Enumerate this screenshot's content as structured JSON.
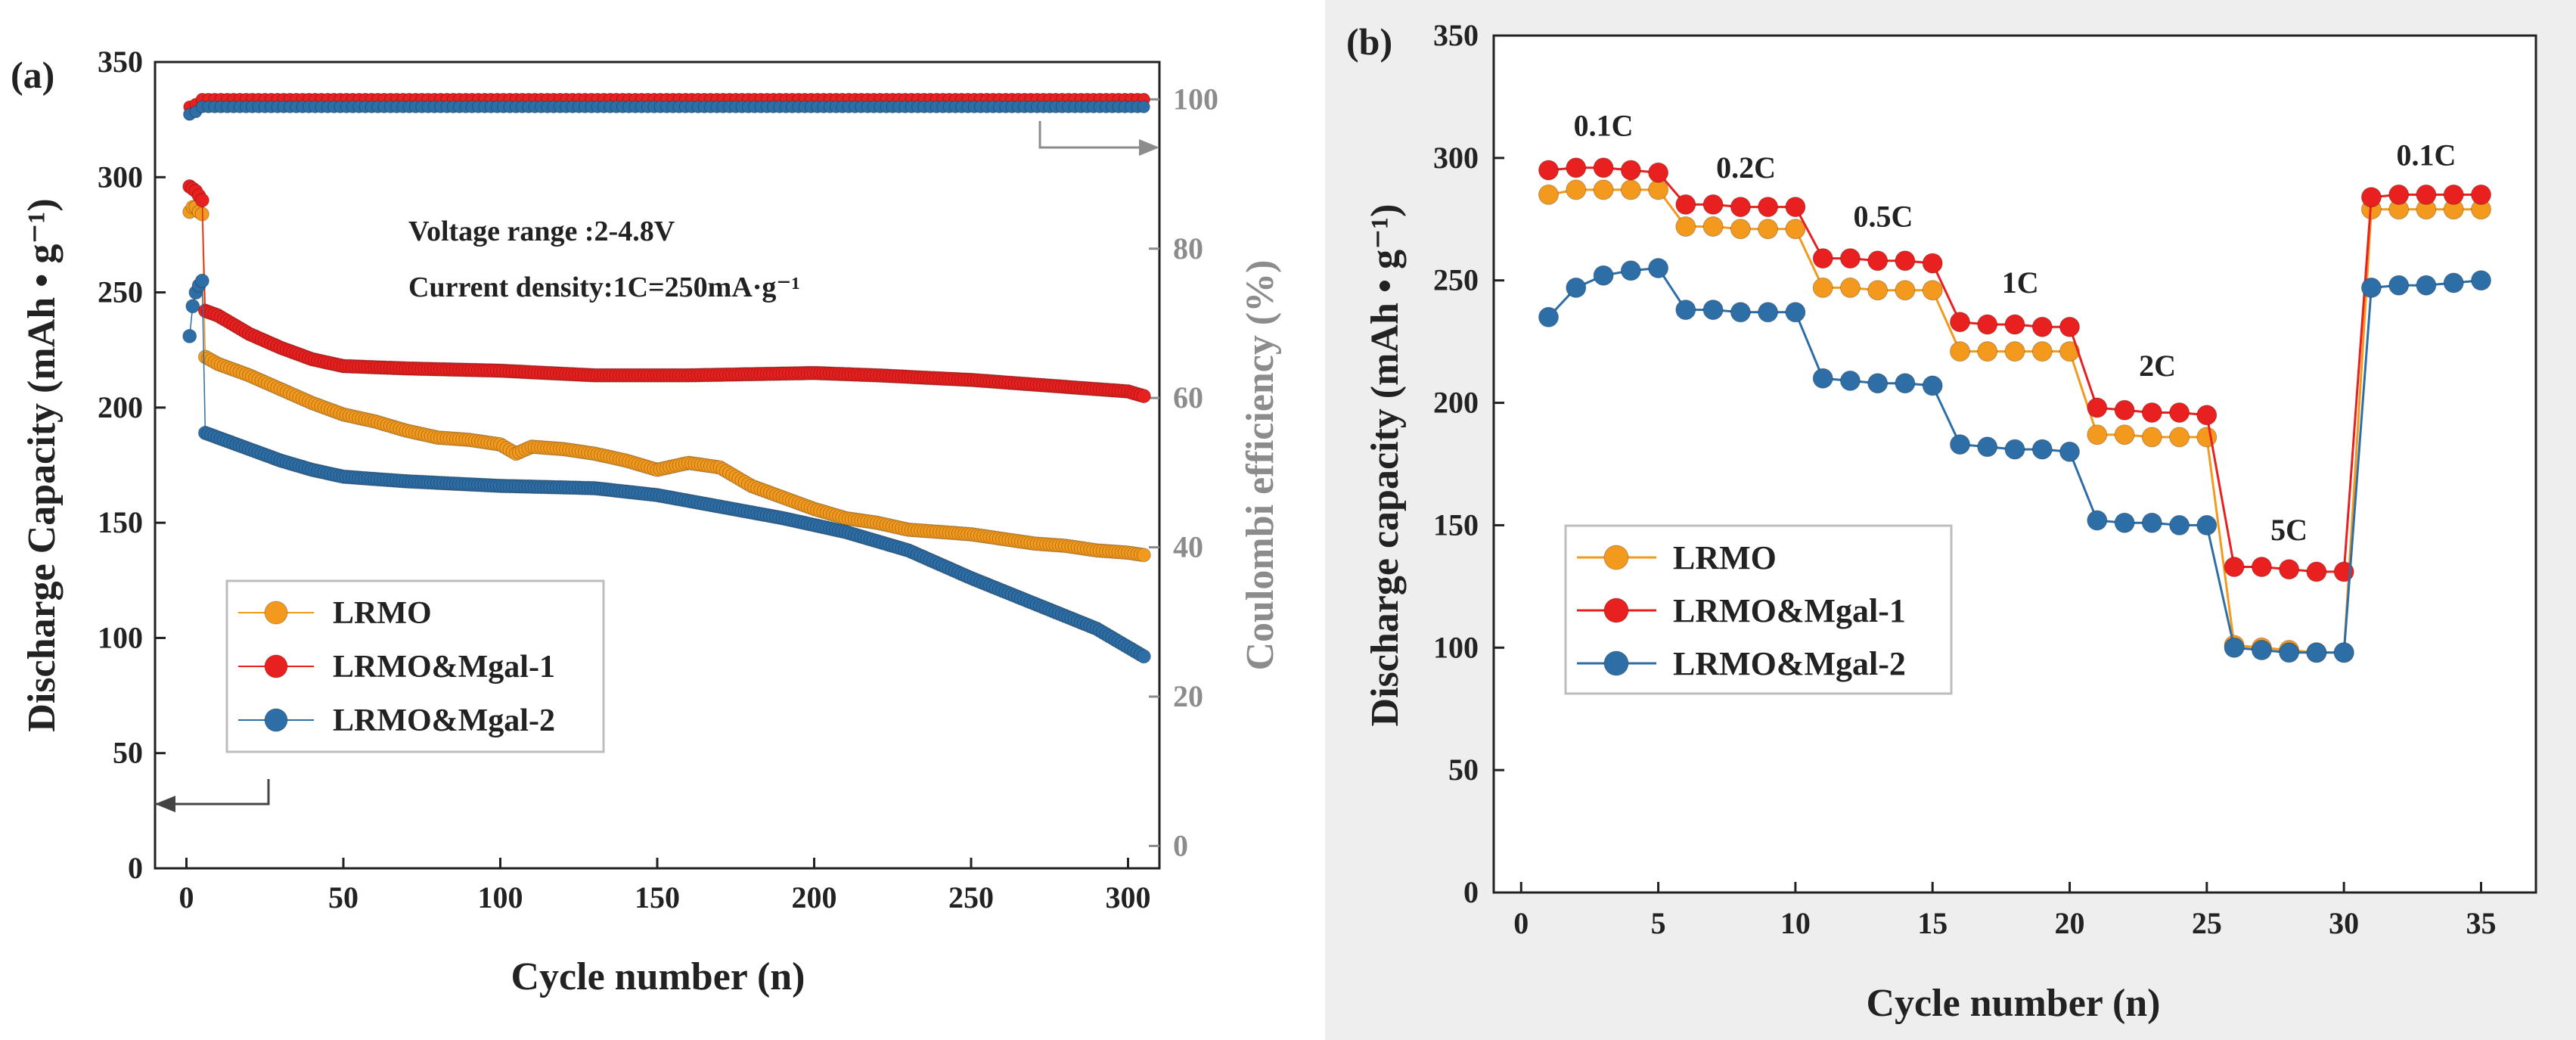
{
  "colors": {
    "lrmo": "#f39a1e",
    "mgal1": "#e8201f",
    "mgal2": "#2e6ea6",
    "ce": "#8c8c8c",
    "axis": "#222222"
  },
  "chart_data": [
    {
      "panel": "(a)",
      "type": "scatter",
      "xlabel": "Cycle number (n)",
      "ylabel": "Discharge Capacity (mAh • g⁻¹)",
      "y2label": "Coulombi efficiency (%)",
      "xlim": [
        -10,
        310
      ],
      "ylim": [
        0,
        350
      ],
      "y2lim": [
        -3,
        105
      ],
      "xticks": [
        "0",
        "50",
        "100",
        "150",
        "200",
        "250",
        "300"
      ],
      "yticks": [
        "0",
        "50",
        "100",
        "150",
        "200",
        "250",
        "300",
        "350"
      ],
      "y2ticks": [
        "0",
        "20",
        "40",
        "60",
        "80",
        "100"
      ],
      "annotations": [
        "Voltage range :2-4.8V",
        "Current density:1C=250mA·g⁻¹"
      ],
      "legend": [
        "LRMO",
        "LRMO&Mgal-1",
        "LRMO&Mgal-2"
      ],
      "legend_position": "lower-left",
      "series": [
        {
          "name": "LRMO",
          "capacity": [
            [
              1,
              285
            ],
            [
              2,
              287
            ],
            [
              3,
              287
            ],
            [
              4,
              285
            ],
            [
              5,
              284
            ],
            [
              6,
              222
            ],
            [
              10,
              219
            ],
            [
              20,
              214
            ],
            [
              30,
              208
            ],
            [
              40,
              202
            ],
            [
              50,
              197
            ],
            [
              60,
              194
            ],
            [
              70,
              190
            ],
            [
              80,
              187
            ],
            [
              90,
              186
            ],
            [
              100,
              184
            ],
            [
              105,
              180
            ],
            [
              110,
              183
            ],
            [
              120,
              182
            ],
            [
              130,
              180
            ],
            [
              140,
              177
            ],
            [
              150,
              173
            ],
            [
              160,
              176
            ],
            [
              170,
              174
            ],
            [
              180,
              166
            ],
            [
              190,
              161
            ],
            [
              200,
              156
            ],
            [
              210,
              152
            ],
            [
              220,
              150
            ],
            [
              230,
              147
            ],
            [
              240,
              146
            ],
            [
              250,
              145
            ],
            [
              260,
              143
            ],
            [
              270,
              141
            ],
            [
              280,
              140
            ],
            [
              290,
              138
            ],
            [
              300,
              137
            ],
            [
              305,
              136
            ]
          ],
          "efficiency": [
            [
              2,
              98
            ],
            [
              5,
              100
            ],
            [
              50,
              100
            ],
            [
              100,
              100
            ],
            [
              150,
              100
            ],
            [
              200,
              100
            ],
            [
              250,
              100
            ],
            [
              300,
              100
            ],
            [
              305,
              100
            ]
          ]
        },
        {
          "name": "LRMO&Mgal-1",
          "capacity": [
            [
              1,
              296
            ],
            [
              2,
              295
            ],
            [
              3,
              294
            ],
            [
              4,
              292
            ],
            [
              5,
              290
            ],
            [
              6,
              242
            ],
            [
              10,
              240
            ],
            [
              20,
              232
            ],
            [
              30,
              226
            ],
            [
              40,
              221
            ],
            [
              50,
              218
            ],
            [
              70,
              217
            ],
            [
              100,
              216
            ],
            [
              130,
              214
            ],
            [
              160,
              214
            ],
            [
              200,
              215
            ],
            [
              220,
              214
            ],
            [
              250,
              212
            ],
            [
              270,
              210
            ],
            [
              290,
              208
            ],
            [
              300,
              207
            ],
            [
              305,
              205
            ]
          ],
          "efficiency": [
            [
              2,
              99
            ],
            [
              5,
              100
            ],
            [
              50,
              100
            ],
            [
              100,
              100
            ],
            [
              150,
              100
            ],
            [
              200,
              100
            ],
            [
              250,
              100
            ],
            [
              300,
              100
            ],
            [
              305,
              100
            ]
          ]
        },
        {
          "name": "LRMO&Mgal-2",
          "capacity": [
            [
              1,
              231
            ],
            [
              2,
              244
            ],
            [
              3,
              250
            ],
            [
              4,
              253
            ],
            [
              5,
              255
            ],
            [
              6,
              189
            ],
            [
              10,
              187
            ],
            [
              20,
              182
            ],
            [
              30,
              177
            ],
            [
              40,
              173
            ],
            [
              50,
              170
            ],
            [
              70,
              168
            ],
            [
              100,
              166
            ],
            [
              130,
              165
            ],
            [
              150,
              162
            ],
            [
              170,
              157
            ],
            [
              190,
              152
            ],
            [
              210,
              146
            ],
            [
              230,
              138
            ],
            [
              250,
              126
            ],
            [
              270,
              115
            ],
            [
              290,
              104
            ],
            [
              300,
              96
            ],
            [
              305,
              92
            ]
          ],
          "efficiency": [
            [
              2,
              98
            ],
            [
              5,
              99
            ],
            [
              50,
              99
            ],
            [
              100,
              99
            ],
            [
              150,
              99
            ],
            [
              200,
              99
            ],
            [
              250,
              99
            ],
            [
              300,
              99
            ],
            [
              305,
              99
            ]
          ]
        }
      ]
    },
    {
      "panel": "(b)",
      "type": "line",
      "xlabel": "Cycle number (n)",
      "ylabel": "Discharge capacity (mAh • g⁻¹)",
      "xlim": [
        -1,
        37
      ],
      "ylim": [
        0,
        350
      ],
      "xticks": [
        "0",
        "5",
        "10",
        "15",
        "20",
        "25",
        "30",
        "35"
      ],
      "yticks": [
        "0",
        "50",
        "100",
        "150",
        "200",
        "250",
        "300",
        "350"
      ],
      "rate_labels": [
        {
          "text": "0.1C",
          "x": 3,
          "y": 309
        },
        {
          "text": "0.2C",
          "x": 8.2,
          "y": 292
        },
        {
          "text": "0.5C",
          "x": 13.2,
          "y": 272
        },
        {
          "text": "1C",
          "x": 18.2,
          "y": 245
        },
        {
          "text": "2C",
          "x": 23.2,
          "y": 211
        },
        {
          "text": "5C",
          "x": 28,
          "y": 144
        },
        {
          "text": "0.1C",
          "x": 33,
          "y": 297
        }
      ],
      "legend": [
        "LRMO",
        "LRMO&Mgal-1",
        "LRMO&Mgal-2"
      ],
      "legend_position": "lower-left",
      "x": [
        1,
        2,
        3,
        4,
        5,
        6,
        7,
        8,
        9,
        10,
        11,
        12,
        13,
        14,
        15,
        16,
        17,
        18,
        19,
        20,
        21,
        22,
        23,
        24,
        25,
        26,
        27,
        28,
        29,
        30,
        31,
        32,
        33,
        34,
        35
      ],
      "series": [
        {
          "name": "LRMO",
          "values": [
            285,
            287,
            287,
            287,
            287,
            272,
            272,
            271,
            271,
            271,
            247,
            247,
            246,
            246,
            246,
            221,
            221,
            221,
            221,
            221,
            187,
            187,
            186,
            186,
            186,
            101,
            100,
            99,
            98,
            98,
            279,
            279,
            279,
            279,
            279
          ]
        },
        {
          "name": "LRMO&Mgal-1",
          "values": [
            295,
            296,
            296,
            295,
            294,
            281,
            281,
            280,
            280,
            280,
            259,
            259,
            258,
            258,
            257,
            233,
            232,
            232,
            231,
            231,
            198,
            197,
            196,
            196,
            195,
            133,
            133,
            132,
            131,
            131,
            284,
            285,
            285,
            285,
            285
          ]
        },
        {
          "name": "LRMO&Mgal-2",
          "values": [
            235,
            247,
            252,
            254,
            255,
            238,
            238,
            237,
            237,
            237,
            210,
            209,
            208,
            208,
            207,
            183,
            182,
            181,
            181,
            180,
            152,
            151,
            151,
            150,
            150,
            100,
            99,
            98,
            98,
            98,
            247,
            248,
            248,
            249,
            250
          ]
        }
      ]
    }
  ]
}
